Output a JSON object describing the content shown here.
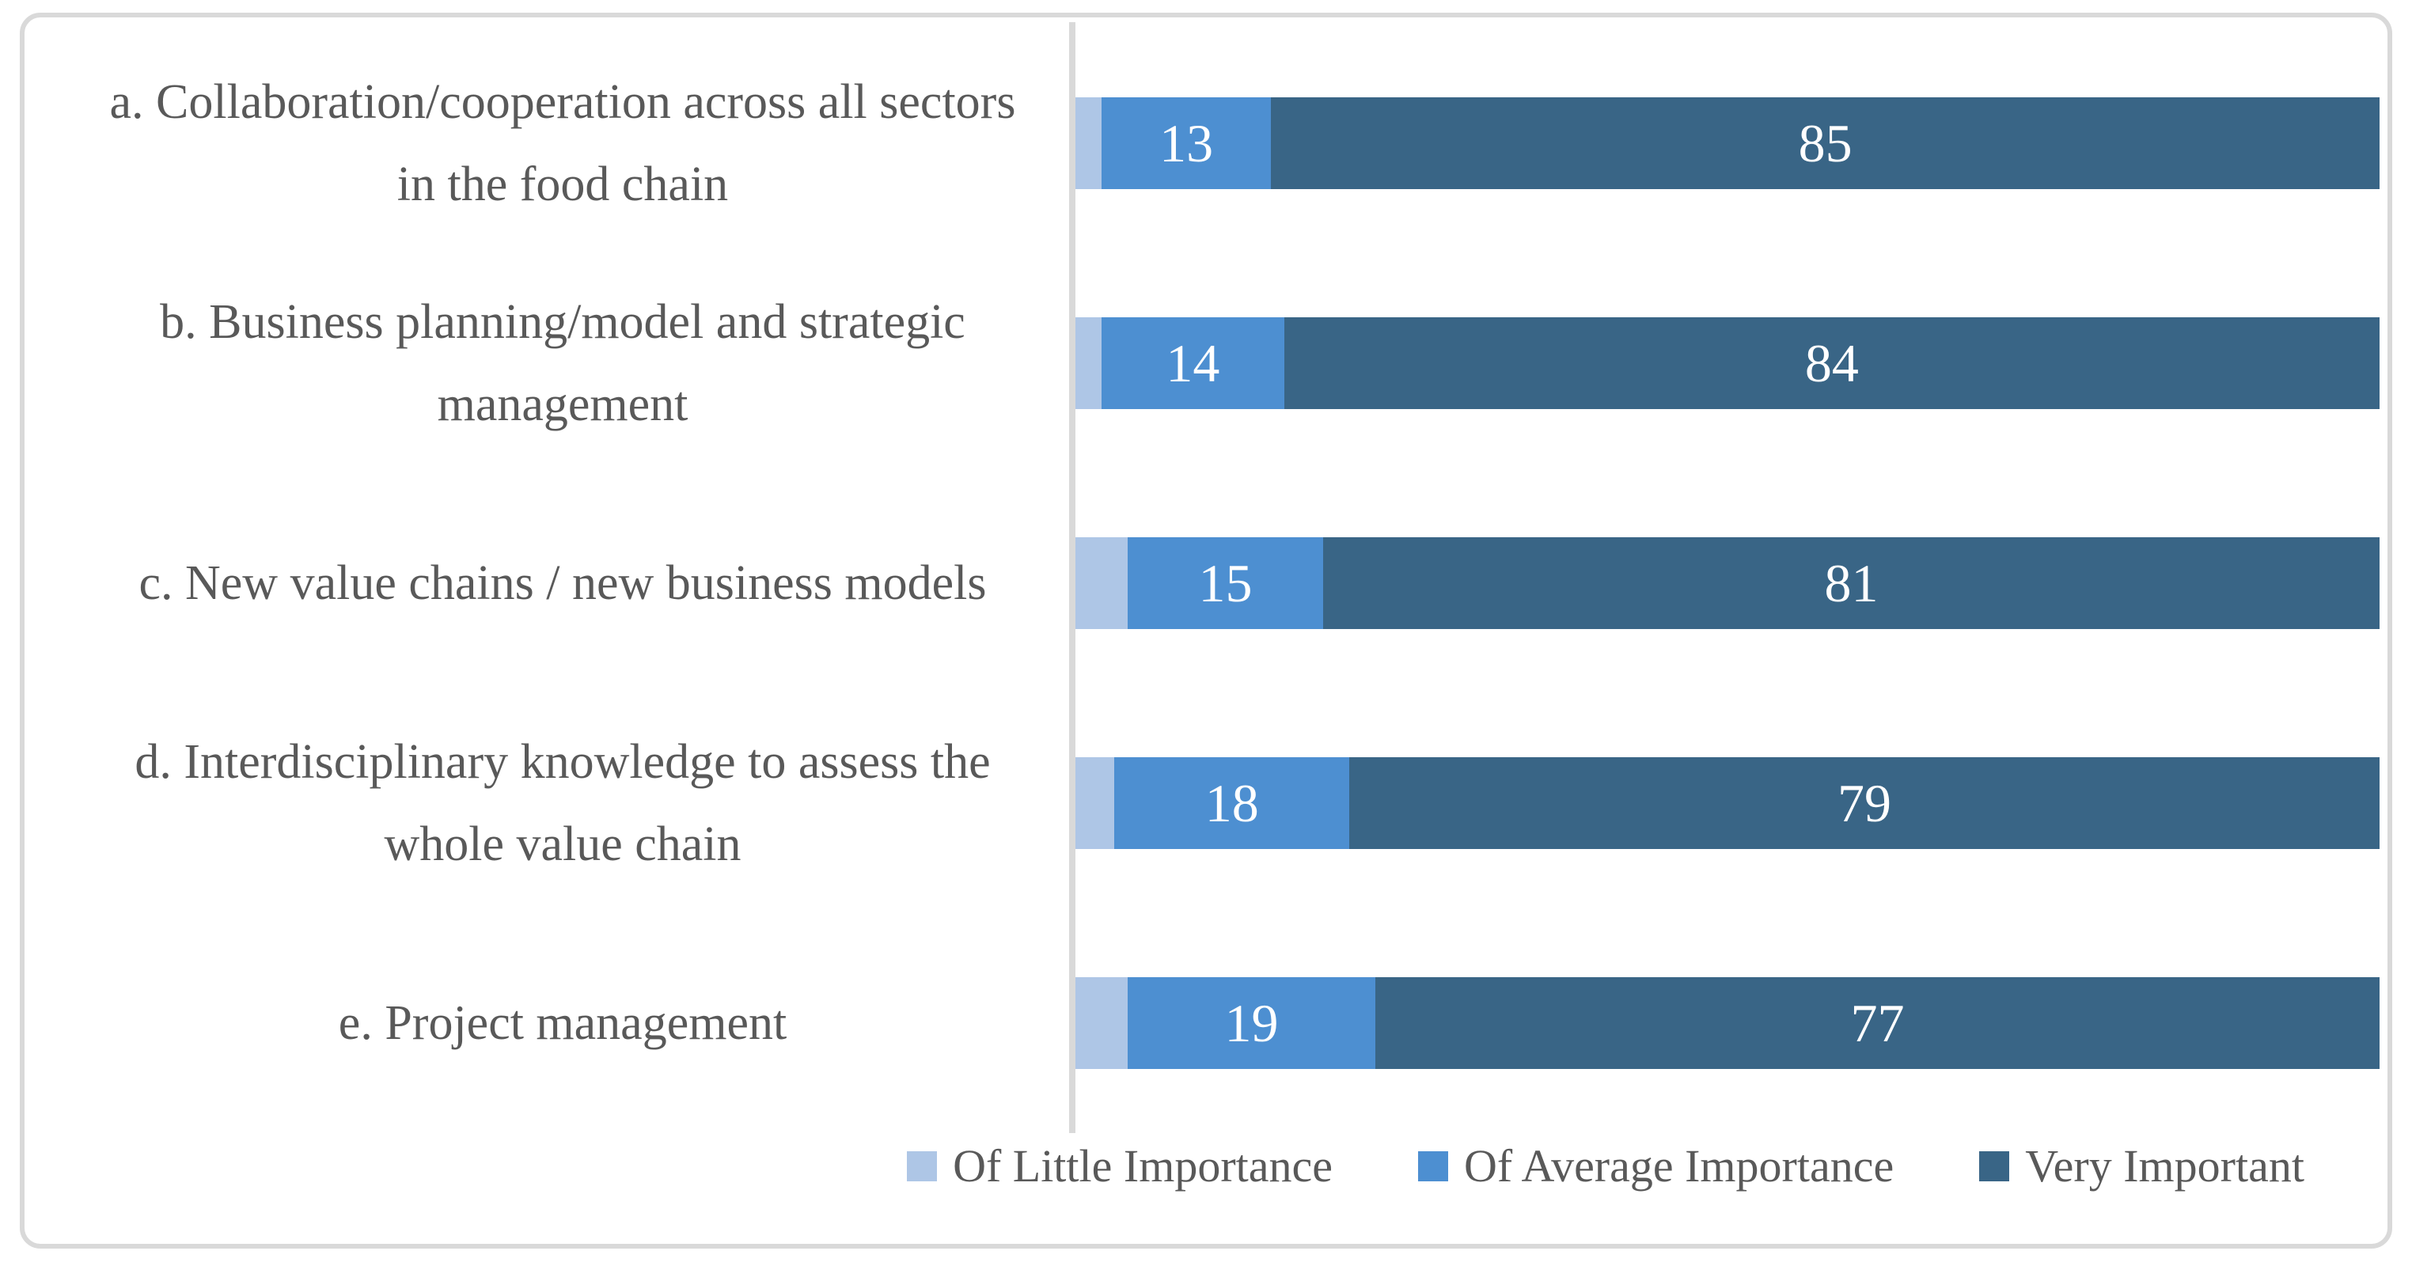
{
  "chart_data": {
    "type": "bar",
    "orientation": "horizontal",
    "stacked": true,
    "title": "",
    "xlabel": "",
    "ylabel": "",
    "xlim": [
      0,
      100
    ],
    "grid": false,
    "legend_position": "bottom",
    "categories": [
      "a. Collaboration/cooperation across all sectors in the food chain",
      "b. Business planning/model and strategic management",
      "c. New value chains / new business models",
      "d. Interdisciplinary knowledge to assess the whole value chain",
      "e. Project management"
    ],
    "series": [
      {
        "name": "Of Little Importance",
        "color": "#aec6e6",
        "values": [
          2,
          2,
          4,
          3,
          4
        ],
        "labels_shown": false
      },
      {
        "name": "Of Average Importance",
        "color": "#4d8fd1",
        "values": [
          13,
          14,
          15,
          18,
          19
        ],
        "labels_shown": true
      },
      {
        "name": "Very Important",
        "color": "#396586",
        "values": [
          85,
          84,
          81,
          79,
          77
        ],
        "labels_shown": true
      }
    ],
    "value_label_color": "#ffffff"
  },
  "colors": {
    "frame_border": "#d9d9d9",
    "axis_line": "#d9d9d9",
    "category_text": "#595959",
    "legend_text": "#595959",
    "background": "#ffffff"
  }
}
